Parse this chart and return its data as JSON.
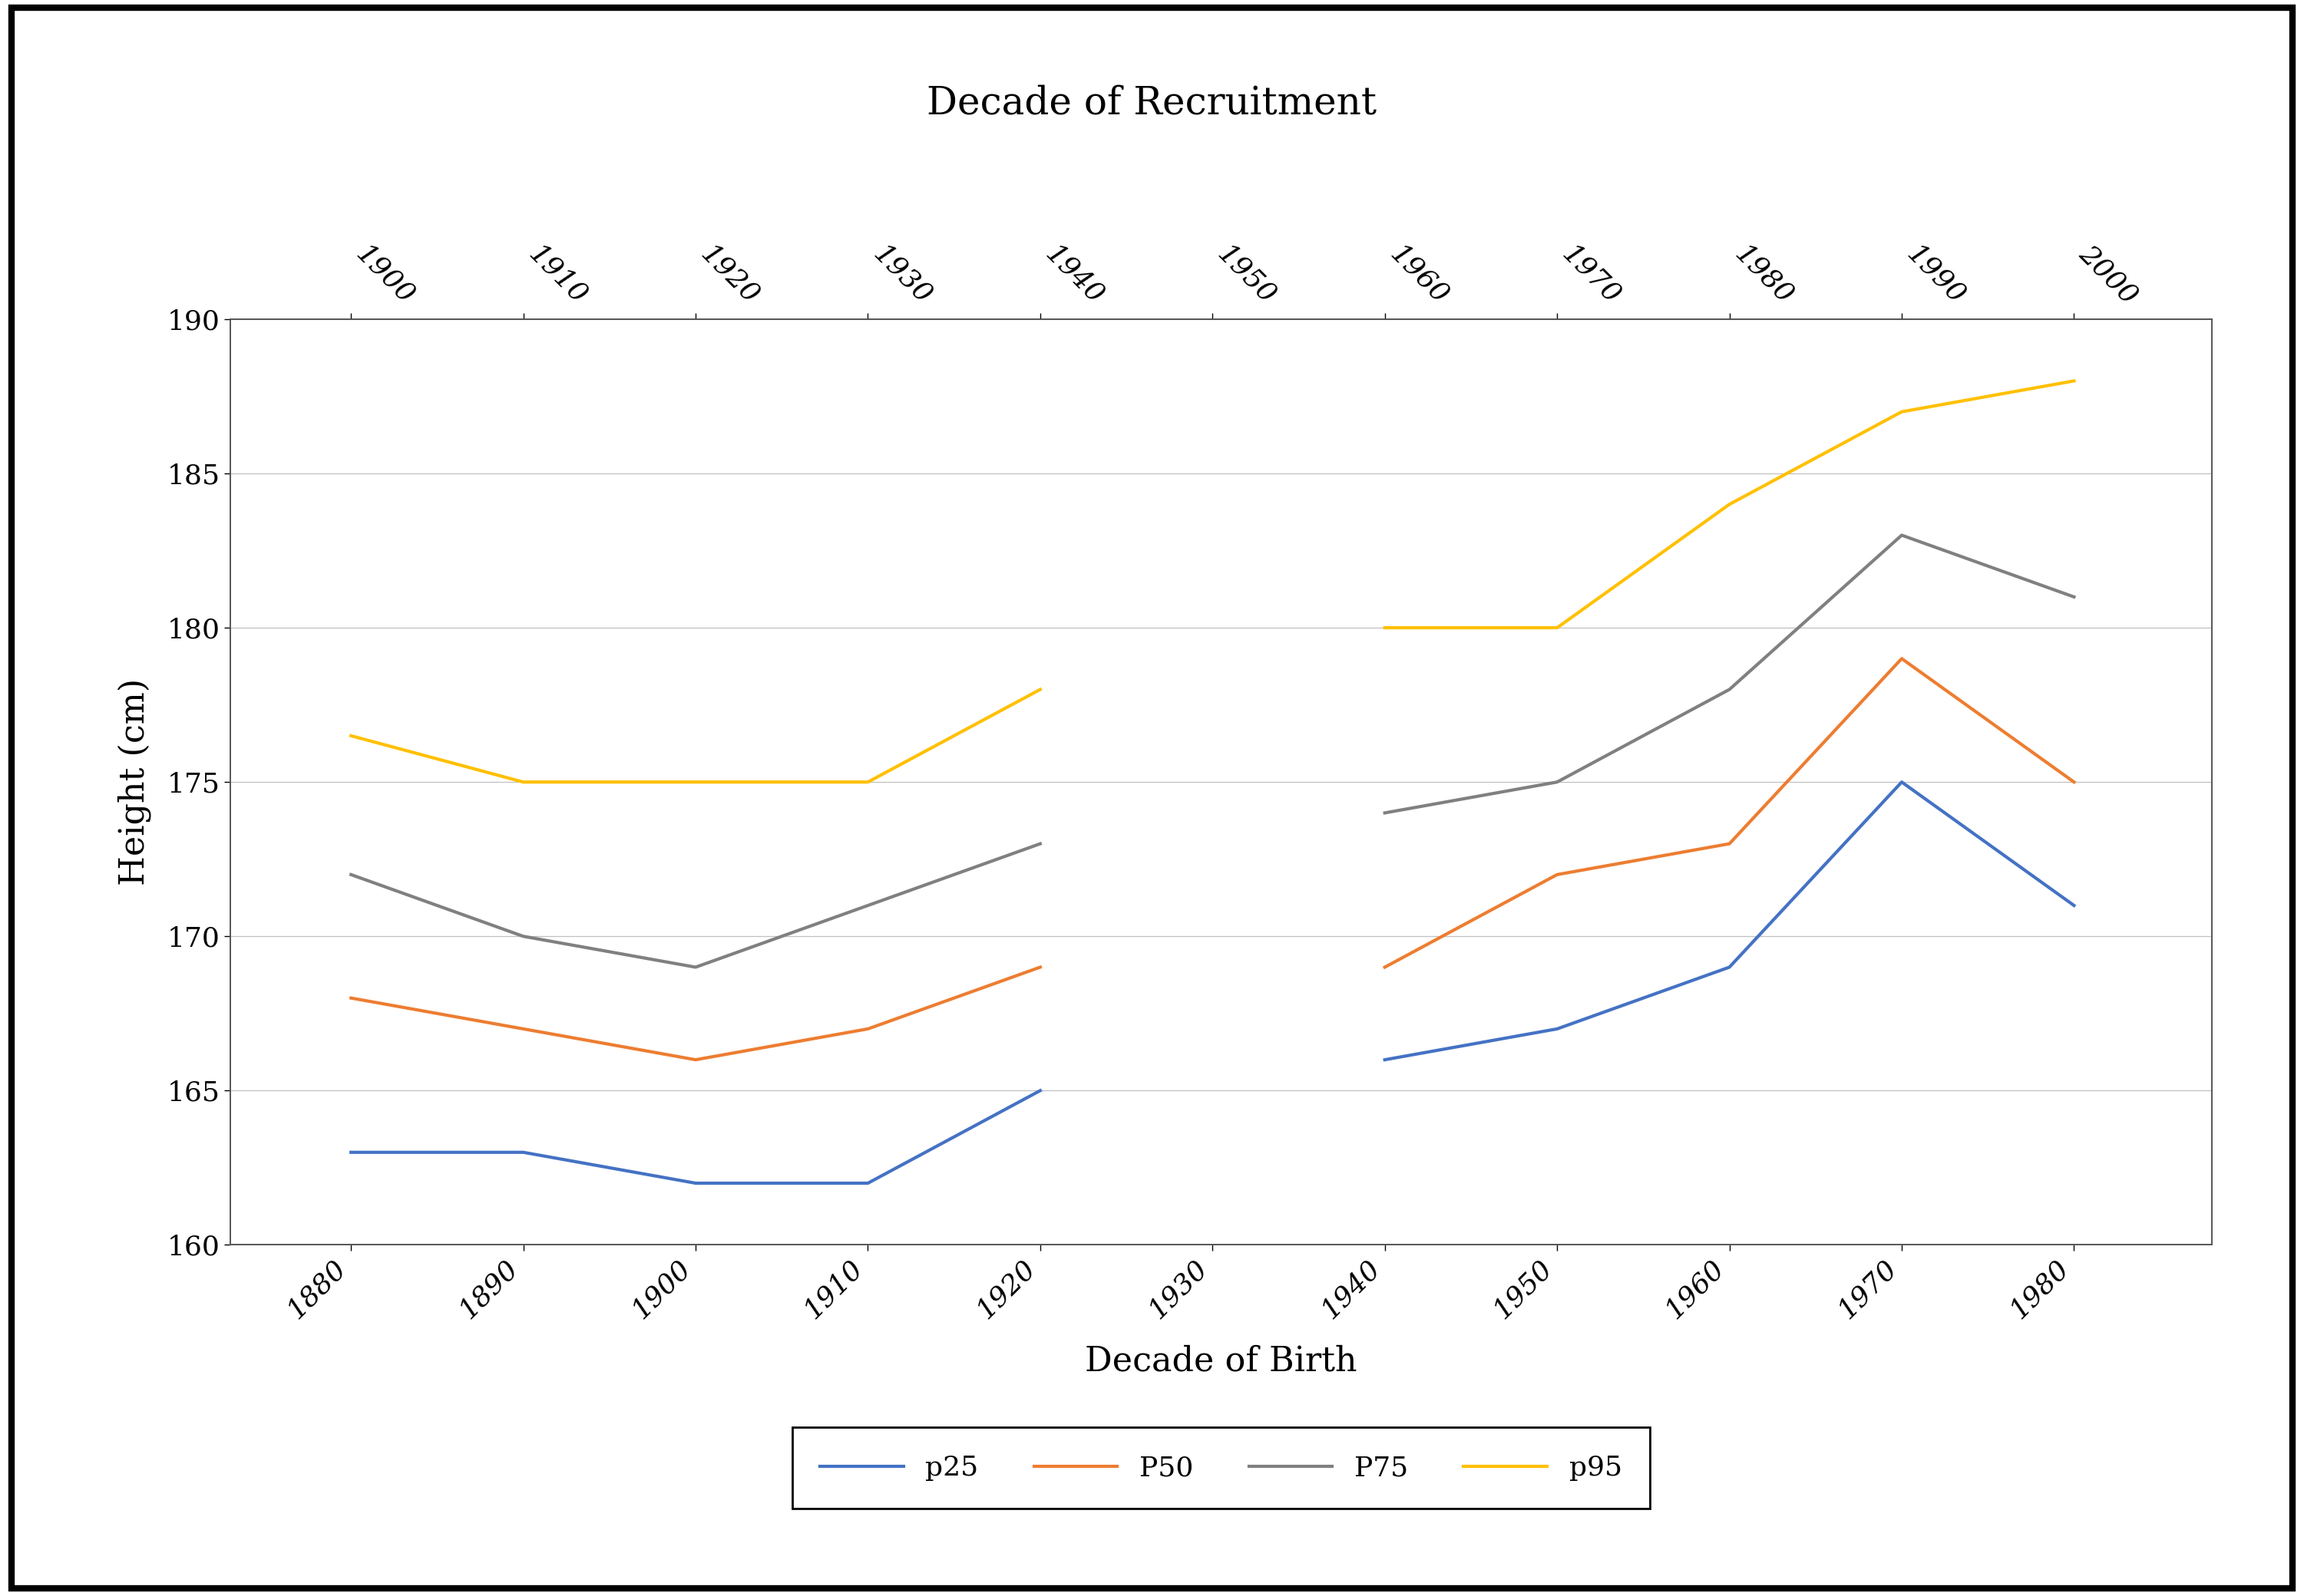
{
  "title": "Decade of Recruitment",
  "xlabel": "Decade of Birth",
  "ylabel": "Height (cm)",
  "background_color": "#ffffff",
  "plot_bg_color": "#ffffff",
  "border_color": "#000000",
  "bottom_x": [
    1880,
    1890,
    1900,
    1910,
    1920,
    1940,
    1950,
    1960,
    1970,
    1980
  ],
  "top_x": [
    1900,
    1910,
    1920,
    1930,
    1940,
    1960,
    1970,
    1980,
    1990,
    2000
  ],
  "all_bottom_ticks": [
    1880,
    1890,
    1900,
    1910,
    1920,
    1930,
    1940,
    1950,
    1960,
    1970,
    1980
  ],
  "all_top_ticks_pos": [
    1880,
    1890,
    1900,
    1910,
    1920,
    1930,
    1940,
    1950,
    1960,
    1970,
    1980
  ],
  "all_top_ticks_labels": [
    "1900",
    "1910",
    "1920",
    "1930",
    "1940",
    "1950",
    "1960",
    "1970",
    "1980",
    "1990",
    "2000"
  ],
  "p25": [
    163,
    163,
    162,
    162,
    165,
    166,
    167,
    169,
    175,
    171
  ],
  "P50": [
    168,
    167,
    166,
    167,
    169,
    169,
    172,
    173,
    179,
    175
  ],
  "P75": [
    172,
    170,
    169,
    171,
    173,
    174,
    175,
    178,
    183,
    181
  ],
  "p95": [
    176.5,
    175,
    175,
    175,
    178,
    180,
    180,
    184,
    187,
    188
  ],
  "p25_color": "#4472c4",
  "P50_color": "#ed7d31",
  "P75_color": "#808080",
  "p95_color": "#ffc000",
  "ylim": [
    160,
    190
  ],
  "yticks": [
    160,
    165,
    170,
    175,
    180,
    185,
    190
  ],
  "title_fontsize": 36,
  "axis_label_fontsize": 32,
  "tick_fontsize": 26,
  "legend_fontsize": 26,
  "line_width": 3.0
}
